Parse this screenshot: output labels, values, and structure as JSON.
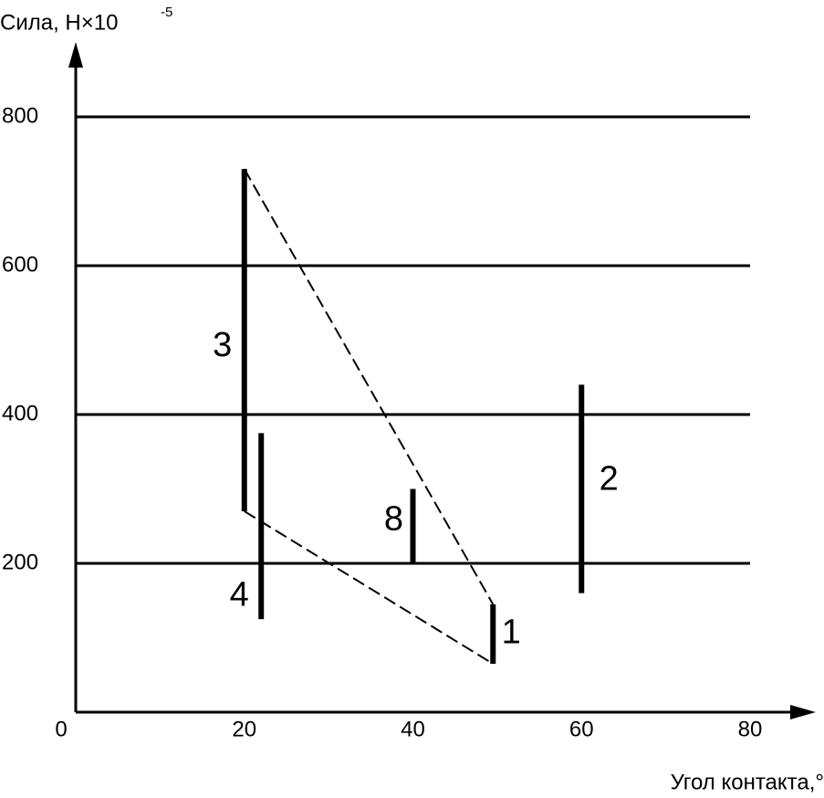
{
  "chart_data": {
    "type": "range",
    "y_label": "Сила, Н×10",
    "y_label_exponent": "-5",
    "x_label": "Угол контакта,°",
    "xlim": [
      0,
      80
    ],
    "ylim": [
      0,
      800
    ],
    "xticks": [
      0,
      20,
      40,
      60,
      80
    ],
    "yticks": [
      200,
      400,
      600,
      800
    ],
    "grid": true,
    "color": "#000000",
    "series": [
      {
        "name": "3",
        "x": 20,
        "low": 270,
        "high": 730
      },
      {
        "name": "4",
        "x": 22,
        "low": 125,
        "high": 375
      },
      {
        "name": "8",
        "x": 40,
        "low": 200,
        "high": 300
      },
      {
        "name": "2",
        "x": 60,
        "low": 160,
        "high": 440
      },
      {
        "name": "1",
        "x": 49.5,
        "low": 65,
        "high": 145
      }
    ],
    "dashed_lines": [
      {
        "x": [
          20,
          49.5
        ],
        "y": [
          730,
          145
        ]
      },
      {
        "x": [
          20,
          49.5
        ],
        "y": [
          270,
          65
        ]
      }
    ]
  }
}
